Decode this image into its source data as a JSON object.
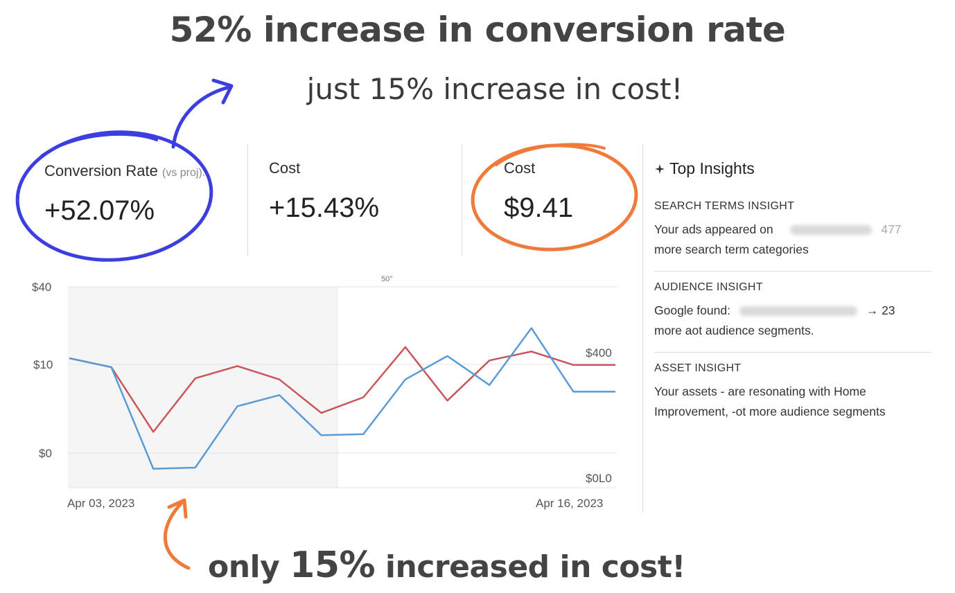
{
  "headline": "52% increase in conversion rate",
  "subline": "just 15% increase in cost!",
  "footline": {
    "prefix": "only ",
    "highlight": "15%",
    "suffix": " increased in cost!"
  },
  "metrics": [
    {
      "label": "Conversion Rate",
      "note": "(vs proj).",
      "value": "+52.07%"
    },
    {
      "label": "Cost",
      "value": "+15.43%"
    },
    {
      "label": "Cost",
      "value": "$9.41"
    }
  ],
  "insights": {
    "title": "Top Insights",
    "icon": "sparkle-icon",
    "sections": [
      {
        "heading": "SEARCH TERMS INSIGHT",
        "line1": "Your ads appeared on",
        "line1_tail": "477",
        "line2": "more search term categories"
      },
      {
        "heading": "AUDIENCE INSIGHT",
        "line1": "Google found:",
        "line1_tail": "→ 23",
        "line2": "more aot audience segments."
      },
      {
        "heading": "ASSET INSIGHT",
        "line1": "Your assets - are resonating with Home",
        "line2": "Improvement, -ot more audience segments"
      }
    ]
  },
  "colors": {
    "accent_blue": "#3b3fe0",
    "accent_orange": "#f07a3a",
    "series_blue": "#5b9bd5",
    "series_red": "#c9555a"
  },
  "chart_data": {
    "type": "line",
    "left_ticks": [
      "$40",
      "$10",
      "$0"
    ],
    "right_ticks": [
      "$400",
      "$0L0"
    ],
    "top_marker": "50°",
    "x_labels": [
      "Apr 03, 2023",
      "Apr 16, 2023"
    ],
    "x": [
      "Apr 03",
      "Apr 04",
      "Apr 05",
      "Apr 06",
      "Apr 07",
      "Apr 08",
      "Apr 09",
      "Apr 10",
      "Apr 11",
      "Apr 12",
      "Apr 13",
      "Apr 14",
      "Apr 15",
      "Apr 16"
    ],
    "series": [
      {
        "color": "#c9555a",
        "values": [
          7.6,
          6.8,
          1.0,
          5.8,
          6.9,
          5.7,
          2.7,
          4.1,
          8.6,
          3.8,
          7.4,
          8.2,
          7.0,
          7.0
        ]
      },
      {
        "color": "#5b9bd5",
        "values": [
          7.6,
          6.8,
          -2.3,
          -2.2,
          3.3,
          4.3,
          0.7,
          0.8,
          5.7,
          7.8,
          5.2,
          10.3,
          4.6,
          4.6
        ]
      }
    ],
    "ylim": [
      -4,
      14
    ]
  }
}
